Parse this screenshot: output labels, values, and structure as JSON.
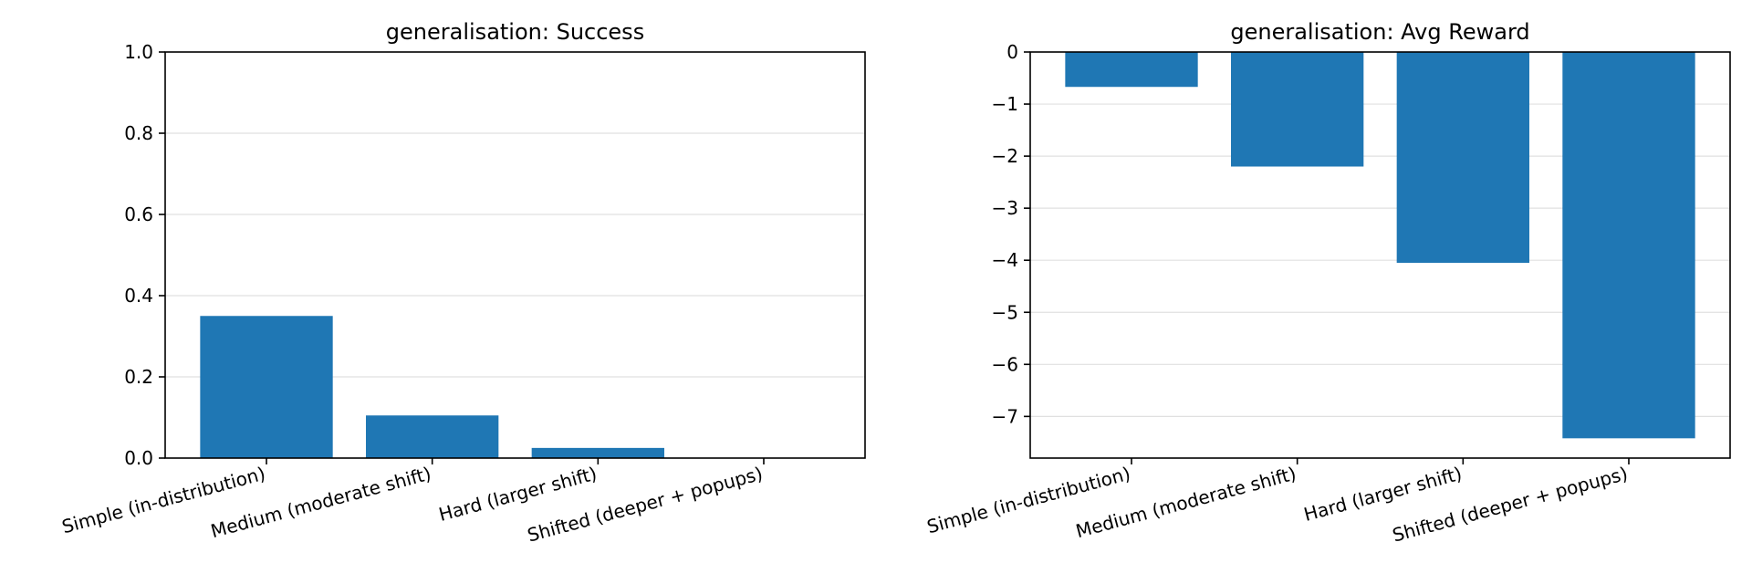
{
  "chart_data": [
    {
      "type": "bar",
      "title": "generalisation: Success",
      "xlabel": "",
      "ylabel": "",
      "categories": [
        "Simple (in-distribution)",
        "Medium (moderate shift)",
        "Hard (larger shift)",
        "Shifted (deeper + popups)"
      ],
      "values": [
        0.35,
        0.105,
        0.025,
        0.0
      ],
      "ylim": [
        0,
        1.0
      ],
      "yticks": [
        0.0,
        0.2,
        0.4,
        0.6,
        0.8,
        1.0
      ],
      "ytick_labels": [
        "0.0",
        "0.2",
        "0.4",
        "0.6",
        "0.8",
        "1.0"
      ],
      "grid": "y",
      "color": "#1f77b4"
    },
    {
      "type": "bar",
      "title": "generalisation: Avg Reward",
      "xlabel": "",
      "ylabel": "",
      "categories": [
        "Simple (in-distribution)",
        "Medium (moderate shift)",
        "Hard (larger shift)",
        "Shifted (deeper + popups)"
      ],
      "values": [
        -0.67,
        -2.2,
        -4.05,
        -7.42
      ],
      "ylim": [
        -7.8,
        0
      ],
      "yticks": [
        0,
        -1,
        -2,
        -3,
        -4,
        -5,
        -6,
        -7
      ],
      "ytick_labels": [
        "0",
        "−1",
        "−2",
        "−3",
        "−4",
        "−5",
        "−6",
        "−7"
      ],
      "grid": "y",
      "color": "#1f77b4"
    }
  ]
}
